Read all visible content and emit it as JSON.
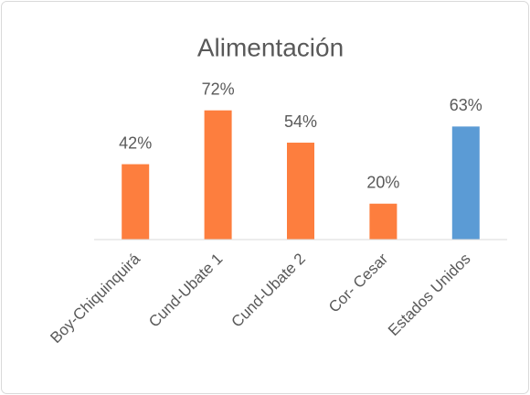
{
  "chart_data": {
    "type": "bar",
    "title": "Alimentación",
    "categories": [
      "Boy-Chiquinquirá",
      "Cund-Ubate 1",
      "Cund-Ubate 2",
      "Cor- Cesar",
      "Estados Unidos"
    ],
    "values": [
      42,
      72,
      54,
      20,
      63
    ],
    "value_labels": [
      "42%",
      "72%",
      "54%",
      "20%",
      "63%"
    ],
    "colors": [
      "#fd7e3e",
      "#fd7e3e",
      "#fd7e3e",
      "#fd7e3e",
      "#5b9bd5"
    ],
    "ylim": [
      0,
      80
    ]
  }
}
